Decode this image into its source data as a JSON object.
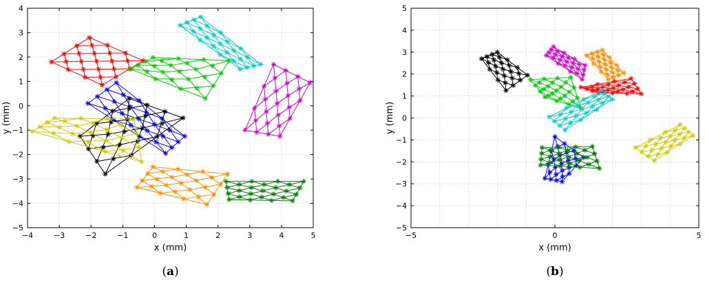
{
  "chart_data": [
    {
      "type": "scatter",
      "panel_label": "a",
      "xlabel": "x (mm)",
      "ylabel": "y (mm)",
      "xlim": [
        -4,
        5
      ],
      "ylim": [
        -5,
        4
      ],
      "xticks": [
        -4,
        -3,
        -2,
        -1,
        0,
        1,
        2,
        3,
        4,
        5
      ],
      "yticks": [
        -5,
        -4,
        -3,
        -2,
        -1,
        0,
        1,
        2,
        3,
        4
      ],
      "grid": true,
      "marker": "*",
      "series": [
        {
          "color": "#ff0000",
          "corners": [
            [
              -3.25,
              1.8
            ],
            [
              -2.05,
              2.8
            ],
            [
              -0.35,
              1.85
            ],
            [
              -1.65,
              0.85
            ]
          ]
        },
        {
          "color": "#00cccc",
          "corners": [
            [
              0.8,
              3.3
            ],
            [
              1.45,
              3.65
            ],
            [
              3.35,
              1.7
            ],
            [
              2.7,
              1.5
            ]
          ]
        },
        {
          "color": "#00cc00",
          "corners": [
            [
              -0.75,
              1.5
            ],
            [
              -0.05,
              1.98
            ],
            [
              2.35,
              1.85
            ],
            [
              1.6,
              0.3
            ]
          ]
        },
        {
          "color": "#cc00cc",
          "corners": [
            [
              2.85,
              -1.0
            ],
            [
              3.75,
              1.7
            ],
            [
              4.9,
              0.95
            ],
            [
              3.95,
              -1.25
            ]
          ]
        },
        {
          "color": "#0000ff",
          "corners": [
            [
              -2.1,
              0.1
            ],
            [
              -1.2,
              0.95
            ],
            [
              0.95,
              -1.25
            ],
            [
              0.35,
              -1.95
            ]
          ]
        },
        {
          "color": "#000000",
          "corners": [
            [
              -2.35,
              -1.25
            ],
            [
              -0.8,
              0.3
            ],
            [
              0.9,
              -0.5
            ],
            [
              -1.55,
              -2.8
            ]
          ]
        },
        {
          "color": "#cccc00",
          "corners": [
            [
              -3.85,
              -1.05
            ],
            [
              -3.15,
              -0.5
            ],
            [
              -0.65,
              -0.55
            ],
            [
              -0.4,
              -2.3
            ]
          ]
        },
        {
          "color": "#ff8c00",
          "corners": [
            [
              -0.55,
              -3.35
            ],
            [
              -0.05,
              -2.5
            ],
            [
              2.3,
              -2.8
            ],
            [
              1.65,
              -4.05
            ]
          ]
        },
        {
          "color": "#008000",
          "corners": [
            [
              2.25,
              -3.1
            ],
            [
              2.35,
              -3.85
            ],
            [
              4.35,
              -3.9
            ],
            [
              4.7,
              -3.1
            ]
          ]
        }
      ]
    },
    {
      "type": "scatter",
      "panel_label": "b",
      "xlabel": "x (mm)",
      "ylabel": "y (mm)",
      "xlim": [
        -5,
        5
      ],
      "ylim": [
        -5,
        5
      ],
      "xticks": [
        -5,
        0,
        5
      ],
      "yticks": [
        -5,
        -4,
        -3,
        -2,
        -1,
        0,
        1,
        2,
        3,
        4,
        5
      ],
      "grid": true,
      "marker": "*",
      "series": [
        {
          "color": "#000000",
          "corners": [
            [
              -2.55,
              2.7
            ],
            [
              -2.0,
              3.0
            ],
            [
              -0.95,
              1.95
            ],
            [
              -1.7,
              1.25
            ]
          ]
        },
        {
          "color": "#cc00cc",
          "corners": [
            [
              -0.3,
              2.85
            ],
            [
              -0.05,
              3.25
            ],
            [
              1.05,
              2.4
            ],
            [
              0.95,
              1.75
            ]
          ]
        },
        {
          "color": "#ff8c00",
          "corners": [
            [
              1.1,
              2.85
            ],
            [
              1.65,
              3.1
            ],
            [
              2.4,
              2.05
            ],
            [
              1.85,
              1.75
            ]
          ]
        },
        {
          "color": "#ff0000",
          "corners": [
            [
              0.9,
              1.4
            ],
            [
              1.5,
              1.15
            ],
            [
              3.0,
              1.1
            ],
            [
              2.65,
              1.8
            ]
          ]
        },
        {
          "color": "#00cc00",
          "corners": [
            [
              -0.85,
              1.75
            ],
            [
              -0.35,
              0.95
            ],
            [
              0.9,
              0.45
            ],
            [
              0.55,
              1.85
            ]
          ]
        },
        {
          "color": "#00cccc",
          "corners": [
            [
              -0.2,
              0.05
            ],
            [
              0.35,
              -0.55
            ],
            [
              2.0,
              0.85
            ],
            [
              1.6,
              1.25
            ]
          ]
        },
        {
          "color": "#cccc00",
          "corners": [
            [
              2.8,
              -1.35
            ],
            [
              3.45,
              -1.95
            ],
            [
              4.8,
              -0.8
            ],
            [
              4.35,
              -0.3
            ]
          ]
        },
        {
          "color": "#0000ff",
          "corners": [
            [
              -0.35,
              -2.75
            ],
            [
              0.25,
              -2.9
            ],
            [
              1.0,
              -1.8
            ],
            [
              0.0,
              -0.85
            ]
          ]
        },
        {
          "color": "#008000",
          "corners": [
            [
              -0.5,
              -2.15
            ],
            [
              -0.45,
              -1.35
            ],
            [
              1.3,
              -1.3
            ],
            [
              1.55,
              -2.3
            ]
          ]
        }
      ]
    }
  ]
}
